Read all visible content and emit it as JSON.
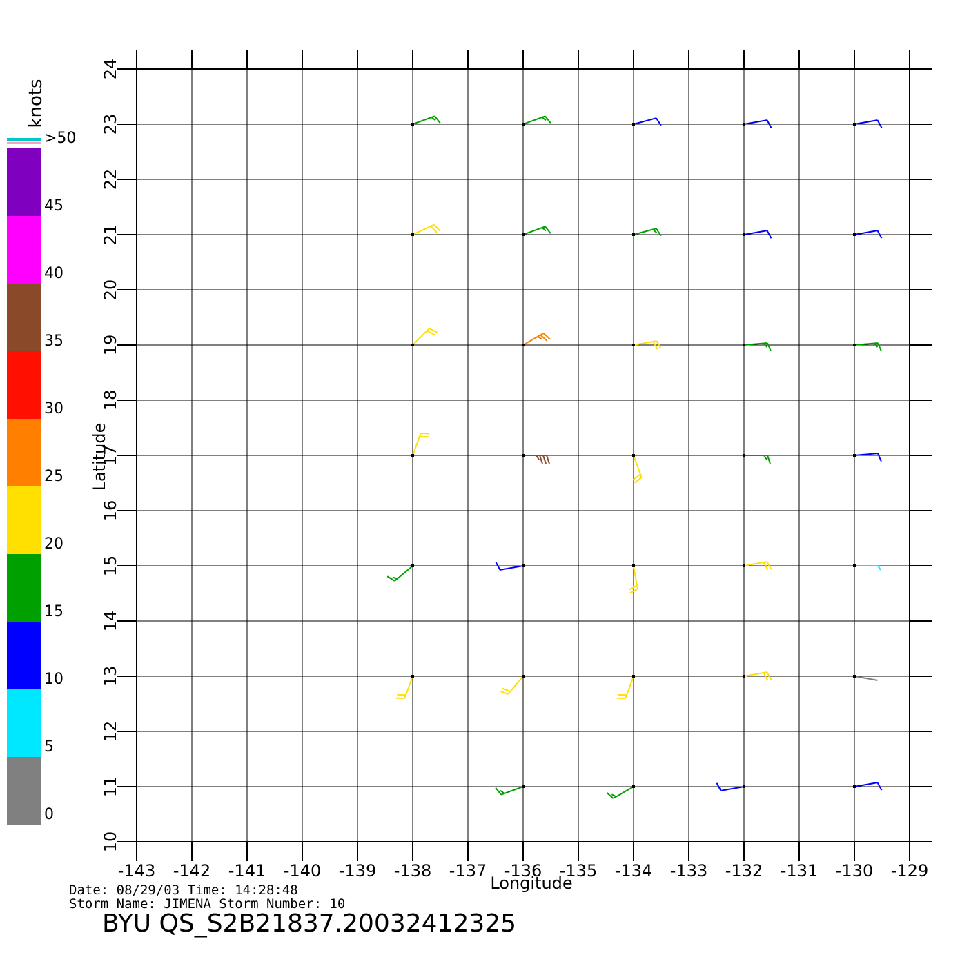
{
  "chart_data": {
    "type": "wind-barb",
    "x_label": "Longitude",
    "y_label": "Latitude",
    "xlim": [
      -143,
      -129
    ],
    "ylim": [
      10,
      24
    ],
    "xticks": [
      -143,
      -142,
      -141,
      -140,
      -139,
      -138,
      -137,
      -136,
      -135,
      -134,
      -133,
      -132,
      -131,
      -130,
      -129
    ],
    "yticks": [
      10,
      11,
      12,
      13,
      14,
      15,
      16,
      17,
      18,
      19,
      20,
      21,
      22,
      23,
      24
    ],
    "grid": true,
    "x": [
      -138,
      -136,
      -134,
      -132,
      -130,
      -138,
      -136,
      -134,
      -132,
      -130,
      -138,
      -136,
      -134,
      -132,
      -130,
      -138,
      -136,
      -134,
      -132,
      -130,
      -138,
      -136,
      -134,
      -132,
      -130,
      -138,
      -136,
      -134,
      -132,
      -130,
      -136,
      -134,
      -132,
      -130
    ],
    "y": [
      23,
      23,
      23,
      23,
      23,
      21,
      21,
      21,
      21,
      21,
      19,
      19,
      19,
      19,
      19,
      17,
      17,
      17,
      17,
      17,
      15,
      15,
      15,
      15,
      15,
      13,
      13,
      13,
      13,
      13,
      11,
      11,
      11,
      11
    ],
    "speeds": [
      18,
      16,
      12,
      10,
      10,
      20,
      18,
      15,
      13,
      12,
      24,
      25,
      20,
      16,
      15,
      22,
      38,
      20,
      18,
      12,
      15,
      12,
      22,
      22,
      8,
      24,
      20,
      22,
      22,
      4,
      15,
      18,
      12,
      10
    ],
    "directions": [
      70,
      70,
      75,
      80,
      80,
      65,
      70,
      75,
      80,
      80,
      45,
      60,
      80,
      85,
      85,
      20,
      90,
      160,
      90,
      85,
      230,
      260,
      170,
      80,
      90,
      200,
      220,
      200,
      80,
      100,
      250,
      240,
      260,
      80
    ],
    "colorbar": {
      "label": "knots",
      "lim": [
        0,
        50
      ],
      "ticks": [
        0,
        5,
        10,
        15,
        20,
        25,
        30,
        35,
        40,
        45,
        {
          "value": 50,
          "label": ">50"
        }
      ],
      "colors": [
        "#808080",
        "#00e8ff",
        "#0000ff",
        "#00a000",
        "#ffe000",
        "#ff8000",
        "#ff1000",
        "#8a4a2a",
        "#ff00ff",
        "#8000c0"
      ]
    },
    "info_line_1": "Date: 08/29/03   Time: 14:28:48",
    "info_line_2": "Storm  Name:  JIMENA    Storm  Number:  10",
    "title": "BYU  QS_S2B21837.20032412325"
  }
}
